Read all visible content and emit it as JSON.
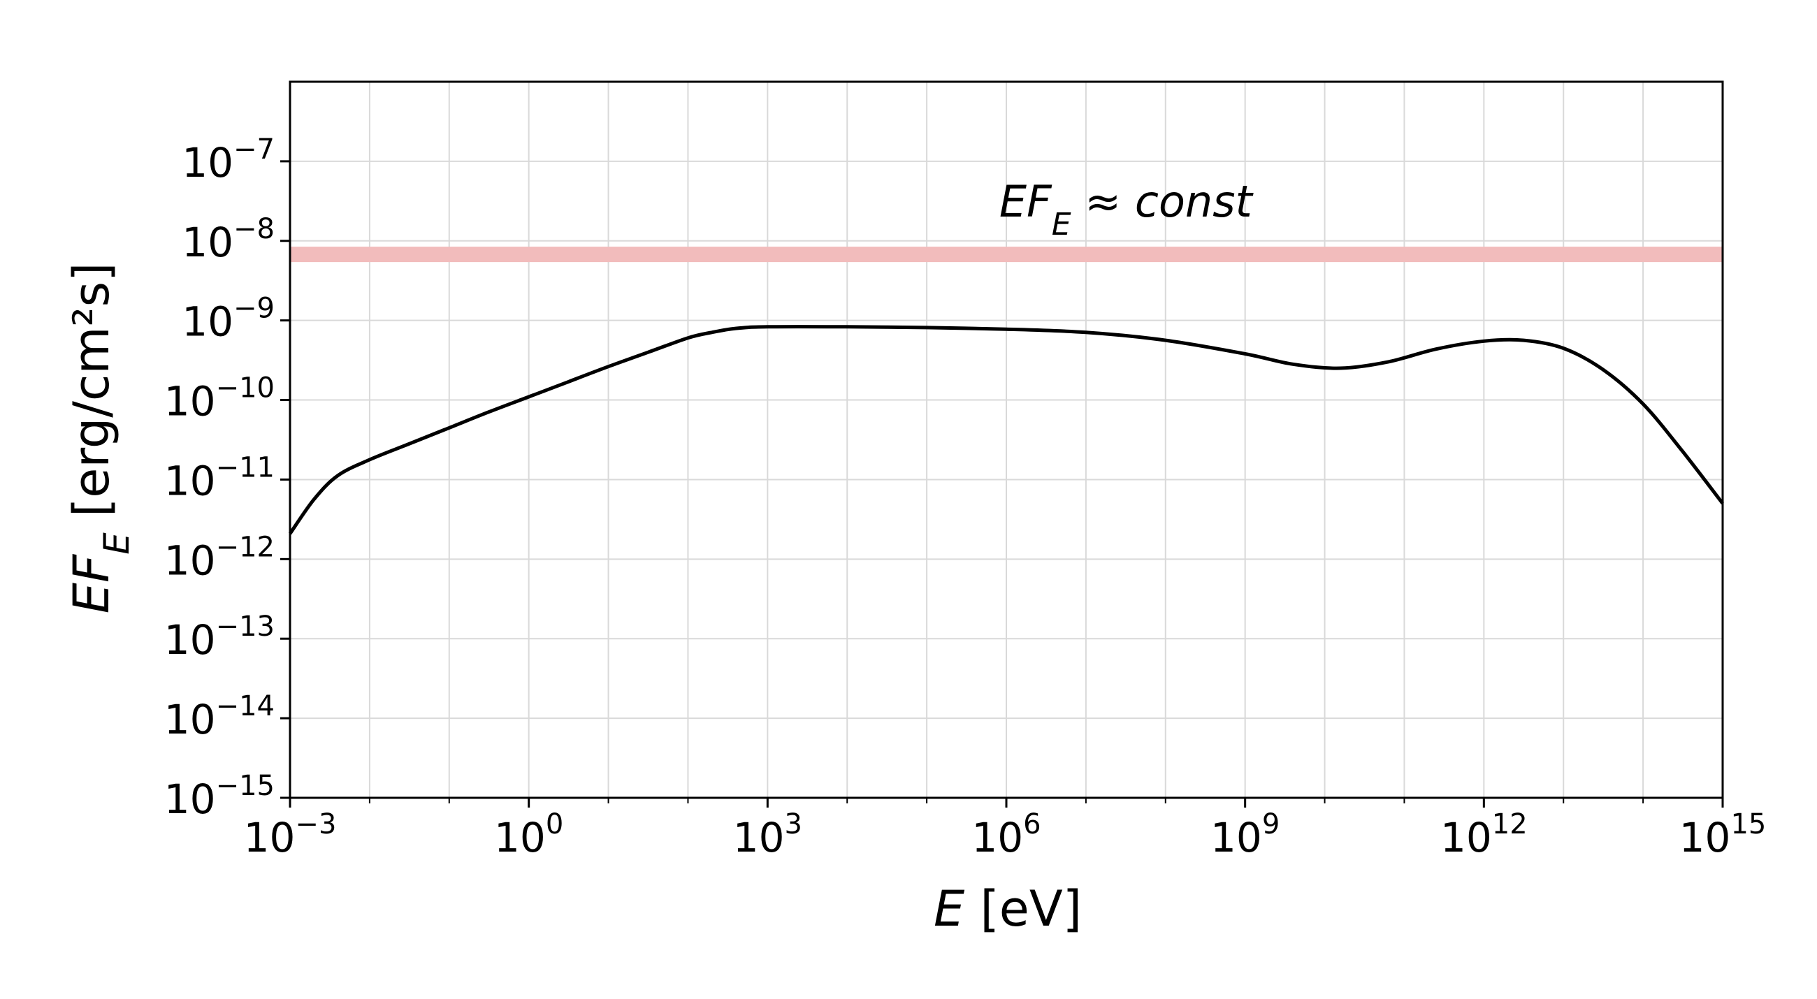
{
  "chart_data": {
    "type": "line",
    "title": "",
    "xlabel": {
      "symbol": "E",
      "unit": " [eV]"
    },
    "ylabel": {
      "symbol": "EF",
      "subscript": "E",
      "unit": " [erg/cm²s]"
    },
    "xscale": "log",
    "yscale": "log",
    "xlim_log10": [
      -3,
      15
    ],
    "ylim_log10": [
      -15,
      -6
    ],
    "xticks": [
      {
        "base": "10",
        "exp": "−3",
        "log10": -3
      },
      {
        "base": "10",
        "exp": "0",
        "log10": 0
      },
      {
        "base": "10",
        "exp": "3",
        "log10": 3
      },
      {
        "base": "10",
        "exp": "6",
        "log10": 6
      },
      {
        "base": "10",
        "exp": "9",
        "log10": 9
      },
      {
        "base": "10",
        "exp": "12",
        "log10": 12
      },
      {
        "base": "10",
        "exp": "15",
        "log10": 15
      }
    ],
    "yticks": [
      {
        "base": "10",
        "exp": "−7",
        "log10": -7
      },
      {
        "base": "10",
        "exp": "−8",
        "log10": -8
      },
      {
        "base": "10",
        "exp": "−9",
        "log10": -9
      },
      {
        "base": "10",
        "exp": "−10",
        "log10": -10
      },
      {
        "base": "10",
        "exp": "−11",
        "log10": -11
      },
      {
        "base": "10",
        "exp": "−12",
        "log10": -12
      },
      {
        "base": "10",
        "exp": "−13",
        "log10": -13
      },
      {
        "base": "10",
        "exp": "−14",
        "log10": -14
      },
      {
        "base": "10",
        "exp": "−15",
        "log10": -15
      }
    ],
    "grid": true,
    "band": {
      "y_log10": -8.17,
      "color": "#f2bcbc"
    },
    "annotation": {
      "lhs": "EF",
      "sub": "E",
      "op": " ≈ ",
      "rhs": "const",
      "x_log10": 7.5,
      "y_log10": -7.5
    },
    "series": [
      {
        "color": "#000000",
        "points_log10": [
          [
            -3,
            -11.68
          ],
          [
            -2.7,
            -11.25
          ],
          [
            -2.4,
            -10.95
          ],
          [
            -2,
            -10.75
          ],
          [
            -1.5,
            -10.55
          ],
          [
            -1,
            -10.35
          ],
          [
            -0.5,
            -10.15
          ],
          [
            0,
            -9.96
          ],
          [
            0.5,
            -9.77
          ],
          [
            1,
            -9.58
          ],
          [
            1.5,
            -9.4
          ],
          [
            2,
            -9.22
          ],
          [
            2.3,
            -9.15
          ],
          [
            2.6,
            -9.1
          ],
          [
            3,
            -9.08
          ],
          [
            4,
            -9.08
          ],
          [
            5,
            -9.09
          ],
          [
            6,
            -9.11
          ],
          [
            7,
            -9.15
          ],
          [
            8,
            -9.25
          ],
          [
            9,
            -9.42
          ],
          [
            9.6,
            -9.55
          ],
          [
            10.2,
            -9.6
          ],
          [
            10.8,
            -9.52
          ],
          [
            11.4,
            -9.36
          ],
          [
            12,
            -9.26
          ],
          [
            12.5,
            -9.25
          ],
          [
            13,
            -9.35
          ],
          [
            13.5,
            -9.62
          ],
          [
            14,
            -10.05
          ],
          [
            14.5,
            -10.65
          ],
          [
            15,
            -11.3
          ]
        ]
      }
    ]
  }
}
